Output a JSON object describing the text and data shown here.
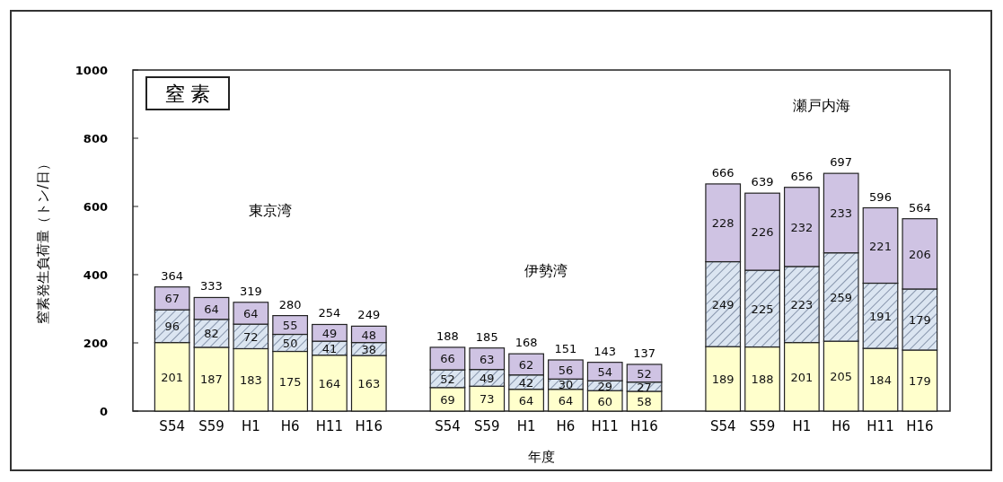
{
  "chart_data": {
    "type": "bar",
    "title": "窒 素",
    "xlabel": "年度",
    "ylabel": "窒素発生負荷量（トン/日）",
    "stacked": true,
    "data_labels": true,
    "categories": [
      "S54",
      "S59",
      "H1",
      "H6",
      "H11",
      "H16",
      null,
      "S54",
      "S59",
      "H1",
      "H6",
      "H11",
      "H16",
      null,
      "S54",
      "S59",
      "H1",
      "H6",
      "H11",
      "H16"
    ],
    "series": [
      {
        "color": "#ffffcc",
        "values": [
          201,
          187,
          183,
          175,
          164,
          163,
          null,
          69,
          73,
          64,
          64,
          60,
          58,
          null,
          189,
          188,
          201,
          205,
          184,
          179
        ]
      },
      {
        "color": "#dbe5f1",
        "values": [
          96,
          82,
          72,
          50,
          41,
          38,
          null,
          52,
          49,
          42,
          30,
          29,
          27,
          null,
          249,
          225,
          223,
          259,
          191,
          179
        ]
      },
      {
        "color": "#cfc3e3",
        "values": [
          67,
          64,
          64,
          55,
          49,
          48,
          null,
          66,
          63,
          62,
          56,
          54,
          52,
          null,
          228,
          226,
          232,
          233,
          221,
          206
        ]
      }
    ],
    "totals": [
      "364",
      "333",
      "319",
      "280",
      "254",
      "249",
      null,
      "188",
      "185",
      "168",
      "151",
      "143",
      "137",
      null,
      "666",
      "639",
      "656",
      "697",
      "596",
      "564"
    ],
    "annotations": [
      "東京湾",
      "伊勢湾",
      "瀬戸内海"
    ],
    "ylim": [
      0,
      1000
    ],
    "yticks": [
      0,
      200,
      400,
      600,
      800,
      1000
    ],
    "grid": false
  }
}
